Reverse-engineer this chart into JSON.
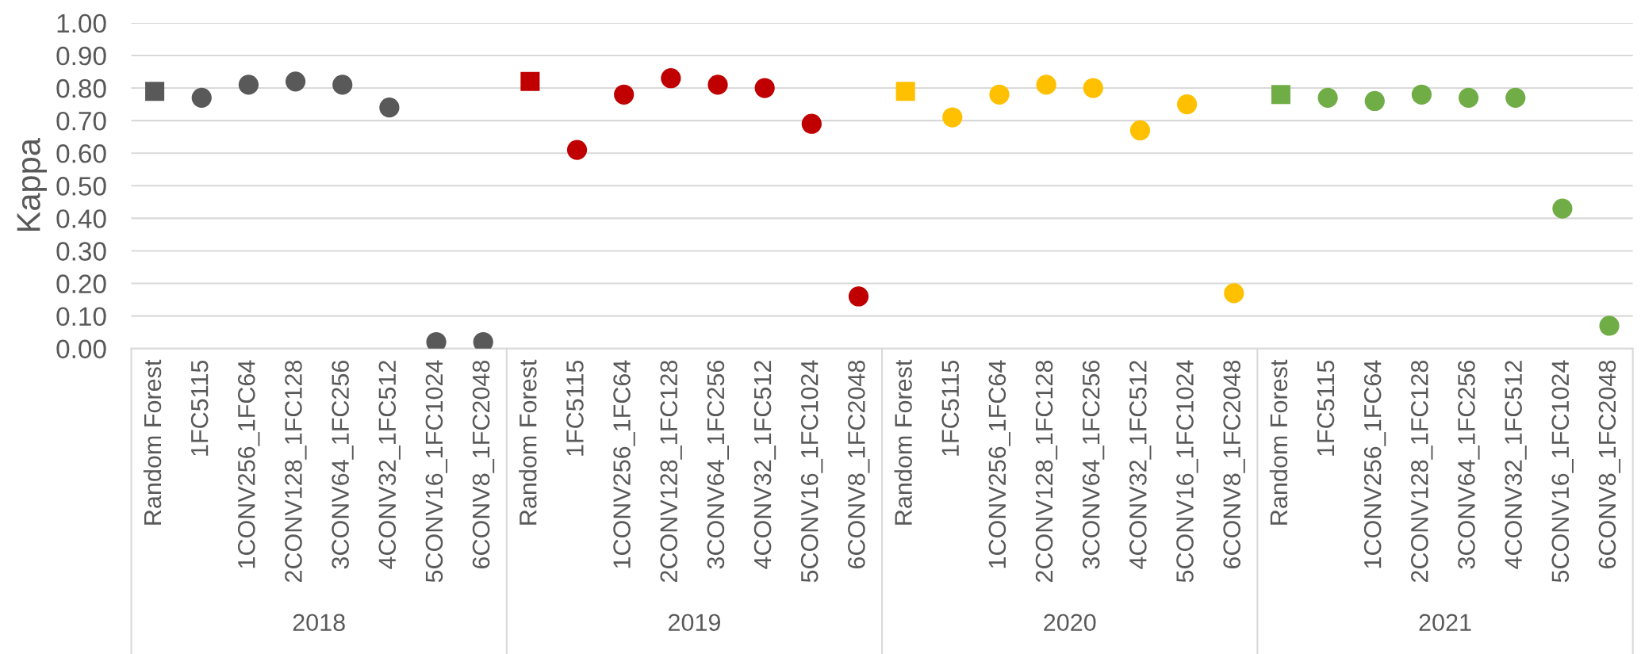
{
  "chart_data": {
    "type": "scatter",
    "ylabel": "Kappa",
    "categories": [
      "Random Forest",
      "1FC5115",
      "1CONV256_1FC64",
      "2CONV128_1FC128",
      "3CONV64_1FC256",
      "4CONV32_1FC512",
      "5CONV16_1FC1024",
      "6CONV8_1FC2048",
      "Random Forest",
      "1FC5115",
      "1CONV256_1FC64",
      "2CONV128_1FC128",
      "3CONV64_1FC256",
      "4CONV32_1FC512",
      "5CONV16_1FC1024",
      "6CONV8_1FC2048",
      "Random Forest",
      "1FC5115",
      "1CONV256_1FC64",
      "2CONV128_1FC128",
      "3CONV64_1FC256",
      "4CONV32_1FC512",
      "5CONV16_1FC1024",
      "6CONV8_1FC2048",
      "Random Forest",
      "1FC5115",
      "1CONV256_1FC64",
      "2CONV128_1FC128",
      "3CONV64_1FC256",
      "4CONV32_1FC512",
      "5CONV16_1FC1024",
      "6CONV8_1FC2048"
    ],
    "series": [
      {
        "color": "#595959",
        "marker": "circle",
        "values": [
          null,
          0.77,
          0.81,
          0.82,
          0.81,
          0.74,
          0.02,
          0.02,
          null,
          null,
          null,
          null,
          null,
          null,
          null,
          null,
          null,
          null,
          null,
          null,
          null,
          null,
          null,
          null,
          null,
          null,
          null,
          null,
          null,
          null,
          null,
          null
        ]
      },
      {
        "color": "#c00000",
        "marker": "circle",
        "values": [
          null,
          null,
          null,
          null,
          null,
          null,
          null,
          null,
          null,
          0.61,
          0.78,
          0.83,
          0.81,
          0.8,
          0.69,
          0.16,
          null,
          null,
          null,
          null,
          null,
          null,
          null,
          null,
          null,
          null,
          null,
          null,
          null,
          null,
          null,
          null
        ]
      },
      {
        "color": "#ffc000",
        "marker": "circle",
        "values": [
          null,
          null,
          null,
          null,
          null,
          null,
          null,
          null,
          null,
          null,
          null,
          null,
          null,
          null,
          null,
          null,
          null,
          0.71,
          0.78,
          0.81,
          0.8,
          0.67,
          0.75,
          0.17,
          null,
          null,
          null,
          null,
          null,
          null,
          null,
          null
        ]
      },
      {
        "color": "#70ad47",
        "marker": "circle",
        "values": [
          null,
          null,
          null,
          null,
          null,
          null,
          null,
          null,
          null,
          null,
          null,
          null,
          null,
          null,
          null,
          null,
          null,
          null,
          null,
          null,
          null,
          null,
          null,
          null,
          null,
          0.77,
          0.76,
          0.78,
          0.77,
          0.77,
          0.43,
          0.07
        ]
      },
      {
        "marker": "square",
        "colors": [
          "#595959",
          null,
          null,
          null,
          null,
          null,
          null,
          null,
          "#c00000",
          null,
          null,
          null,
          null,
          null,
          null,
          null,
          "#ffc000",
          null,
          null,
          null,
          null,
          null,
          null,
          null,
          "#70ad47",
          null,
          null,
          null,
          null,
          null,
          null,
          null
        ],
        "values": [
          0.79,
          null,
          null,
          null,
          null,
          null,
          null,
          null,
          0.82,
          null,
          null,
          null,
          null,
          null,
          null,
          null,
          0.79,
          null,
          null,
          null,
          null,
          null,
          null,
          null,
          0.78,
          null,
          null,
          null,
          null,
          null,
          null,
          null
        ]
      }
    ],
    "ylim": [
      0,
      1
    ],
    "yticks": [
      {
        "value": 0,
        "label": "0.00"
      },
      {
        "value": 0.1,
        "label": "0.10"
      },
      {
        "value": 0.2,
        "label": "0.20"
      },
      {
        "value": 0.3,
        "label": "0.30"
      },
      {
        "value": 0.4,
        "label": "0.40"
      },
      {
        "value": 0.5,
        "label": "0.50"
      },
      {
        "value": 0.6,
        "label": "0.60"
      },
      {
        "value": 0.7,
        "label": "0.70"
      },
      {
        "value": 0.8,
        "label": "0.80"
      },
      {
        "value": 0.9,
        "label": "0.90"
      },
      {
        "value": 1,
        "label": "1.00"
      }
    ],
    "annotations": [
      "2018",
      "2019",
      "2020",
      "2021"
    ],
    "grid": "y",
    "legend": false
  }
}
